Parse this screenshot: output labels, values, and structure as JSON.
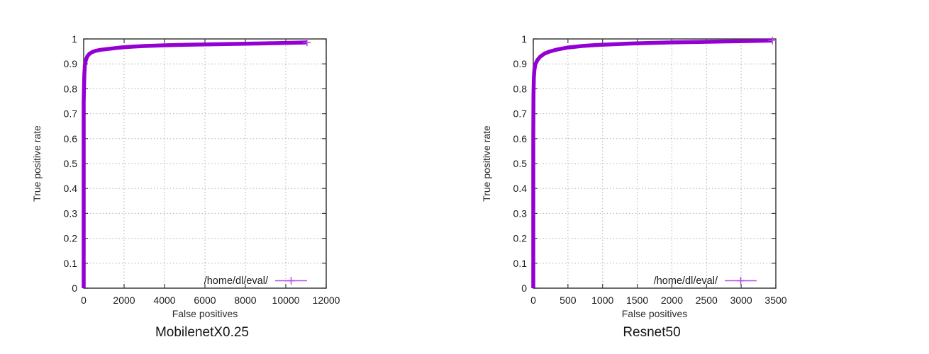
{
  "figure": {
    "background": "#ffffff",
    "description": "Two ROC curve plots side by side"
  },
  "style": {
    "grid_color": "#b0b0b0",
    "border_color": "#3a3a3a",
    "tick_color": "#3a3a3a",
    "curve_width": 5.5
  },
  "chart_data": [
    {
      "type": "line",
      "title": "MobilenetX0.25",
      "xlabel": "False positives",
      "ylabel": "True positive rate",
      "xlim": [
        0,
        12000
      ],
      "ylim": [
        0,
        1
      ],
      "x_ticks": [
        0,
        2000,
        4000,
        6000,
        8000,
        10000,
        12000
      ],
      "y_ticks": [
        0,
        0.1,
        0.2,
        0.3,
        0.4,
        0.5,
        0.6,
        0.7,
        0.8,
        0.9,
        1
      ],
      "grid": true,
      "legend_position": "bottom-right-inside",
      "series": [
        {
          "name": "/home/dl/eval/",
          "color": "#9400d3",
          "marker": "plus",
          "marker_color": "#b44fe0",
          "points": [
            [
              0,
              0
            ],
            [
              0,
              0.745
            ],
            [
              15,
              0.8
            ],
            [
              30,
              0.855
            ],
            [
              60,
              0.895
            ],
            [
              110,
              0.915
            ],
            [
              180,
              0.93
            ],
            [
              280,
              0.94
            ],
            [
              420,
              0.9475
            ],
            [
              600,
              0.9525
            ],
            [
              850,
              0.9565
            ],
            [
              1200,
              0.96
            ],
            [
              1600,
              0.9635
            ],
            [
              2000,
              0.967
            ],
            [
              2500,
              0.9695
            ],
            [
              3000,
              0.9715
            ],
            [
              4000,
              0.9745
            ],
            [
              5000,
              0.9765
            ],
            [
              6000,
              0.978
            ],
            [
              7000,
              0.9795
            ],
            [
              8000,
              0.981
            ],
            [
              9000,
              0.9825
            ],
            [
              10000,
              0.984
            ],
            [
              10600,
              0.985
            ],
            [
              11050,
              0.986
            ]
          ]
        }
      ]
    },
    {
      "type": "line",
      "title": "Resnet50",
      "xlabel": "False positives",
      "ylabel": "True positive rate",
      "xlim": [
        0,
        3500
      ],
      "ylim": [
        0,
        1
      ],
      "x_ticks": [
        0,
        500,
        1000,
        1500,
        2000,
        2500,
        3000,
        3500
      ],
      "y_ticks": [
        0,
        0.1,
        0.2,
        0.3,
        0.4,
        0.5,
        0.6,
        0.7,
        0.8,
        0.9,
        1
      ],
      "grid": true,
      "legend_position": "bottom-right-inside",
      "series": [
        {
          "name": "/home/dl/eval/",
          "color": "#9400d3",
          "marker": "plus",
          "marker_color": "#b44fe0",
          "points": [
            [
              0,
              0
            ],
            [
              0,
              0.6
            ],
            [
              3,
              0.78
            ],
            [
              8,
              0.845
            ],
            [
              15,
              0.875
            ],
            [
              30,
              0.898
            ],
            [
              60,
              0.916
            ],
            [
              100,
              0.929
            ],
            [
              160,
              0.941
            ],
            [
              240,
              0.95
            ],
            [
              350,
              0.958
            ],
            [
              500,
              0.9655
            ],
            [
              700,
              0.9715
            ],
            [
              900,
              0.9755
            ],
            [
              1100,
              0.978
            ],
            [
              1400,
              0.9815
            ],
            [
              1700,
              0.984
            ],
            [
              2000,
              0.986
            ],
            [
              2400,
              0.988
            ],
            [
              2800,
              0.99
            ],
            [
              3100,
              0.9915
            ],
            [
              3450,
              0.9935
            ]
          ]
        }
      ]
    }
  ]
}
